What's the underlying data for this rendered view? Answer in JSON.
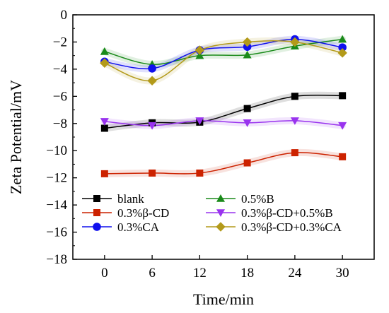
{
  "chart_data": {
    "type": "line",
    "xlabel": "Time/min",
    "ylabel": "Zeta Potential/mV",
    "x": [
      0,
      6,
      12,
      18,
      24,
      30
    ],
    "xlim": [
      -4,
      34
    ],
    "ylim": [
      -18,
      0
    ],
    "xticks": [
      0,
      6,
      12,
      18,
      24,
      30
    ],
    "yticks": [
      0,
      -2,
      -4,
      -6,
      -8,
      -10,
      -12,
      -14,
      -16,
      -18
    ],
    "xtick_labels": [
      "0",
      "6",
      "12",
      "18",
      "24",
      "30"
    ],
    "ytick_labels": [
      "0",
      "−2",
      "−4",
      "−6",
      "−8",
      "−10",
      "−12",
      "−14",
      "−16",
      "−18"
    ],
    "grid": false,
    "legend_position": "bottom-left",
    "series": [
      {
        "name": "blank",
        "values": [
          -8.35,
          -7.95,
          -7.9,
          -6.9,
          -6.0,
          -5.95
        ],
        "color": "#000000",
        "marker": "square"
      },
      {
        "name": "0.5%B",
        "values": [
          -2.7,
          -3.65,
          -3.0,
          -2.95,
          -2.3,
          -1.8
        ],
        "color": "#1a8a1a",
        "marker": "triangle-up"
      },
      {
        "name": "0.3%β-CD",
        "values": [
          -11.7,
          -11.65,
          -11.65,
          -10.9,
          -10.15,
          -10.45
        ],
        "color": "#cc2200",
        "marker": "square"
      },
      {
        "name": "0.3%β-CD+0.5%B",
        "values": [
          -7.85,
          -8.15,
          -7.8,
          -7.95,
          -7.8,
          -8.15
        ],
        "color": "#9933ee",
        "marker": "triangle-down"
      },
      {
        "name": "0.3%CA",
        "values": [
          -3.45,
          -3.95,
          -2.6,
          -2.35,
          -1.8,
          -2.4
        ],
        "color": "#1010ee",
        "marker": "circle"
      },
      {
        "name": "0.3%β-CD+0.3%CA",
        "values": [
          -3.55,
          -4.85,
          -2.6,
          -2.0,
          -2.0,
          -2.8
        ],
        "color": "#b39a1a",
        "marker": "diamond"
      }
    ]
  }
}
